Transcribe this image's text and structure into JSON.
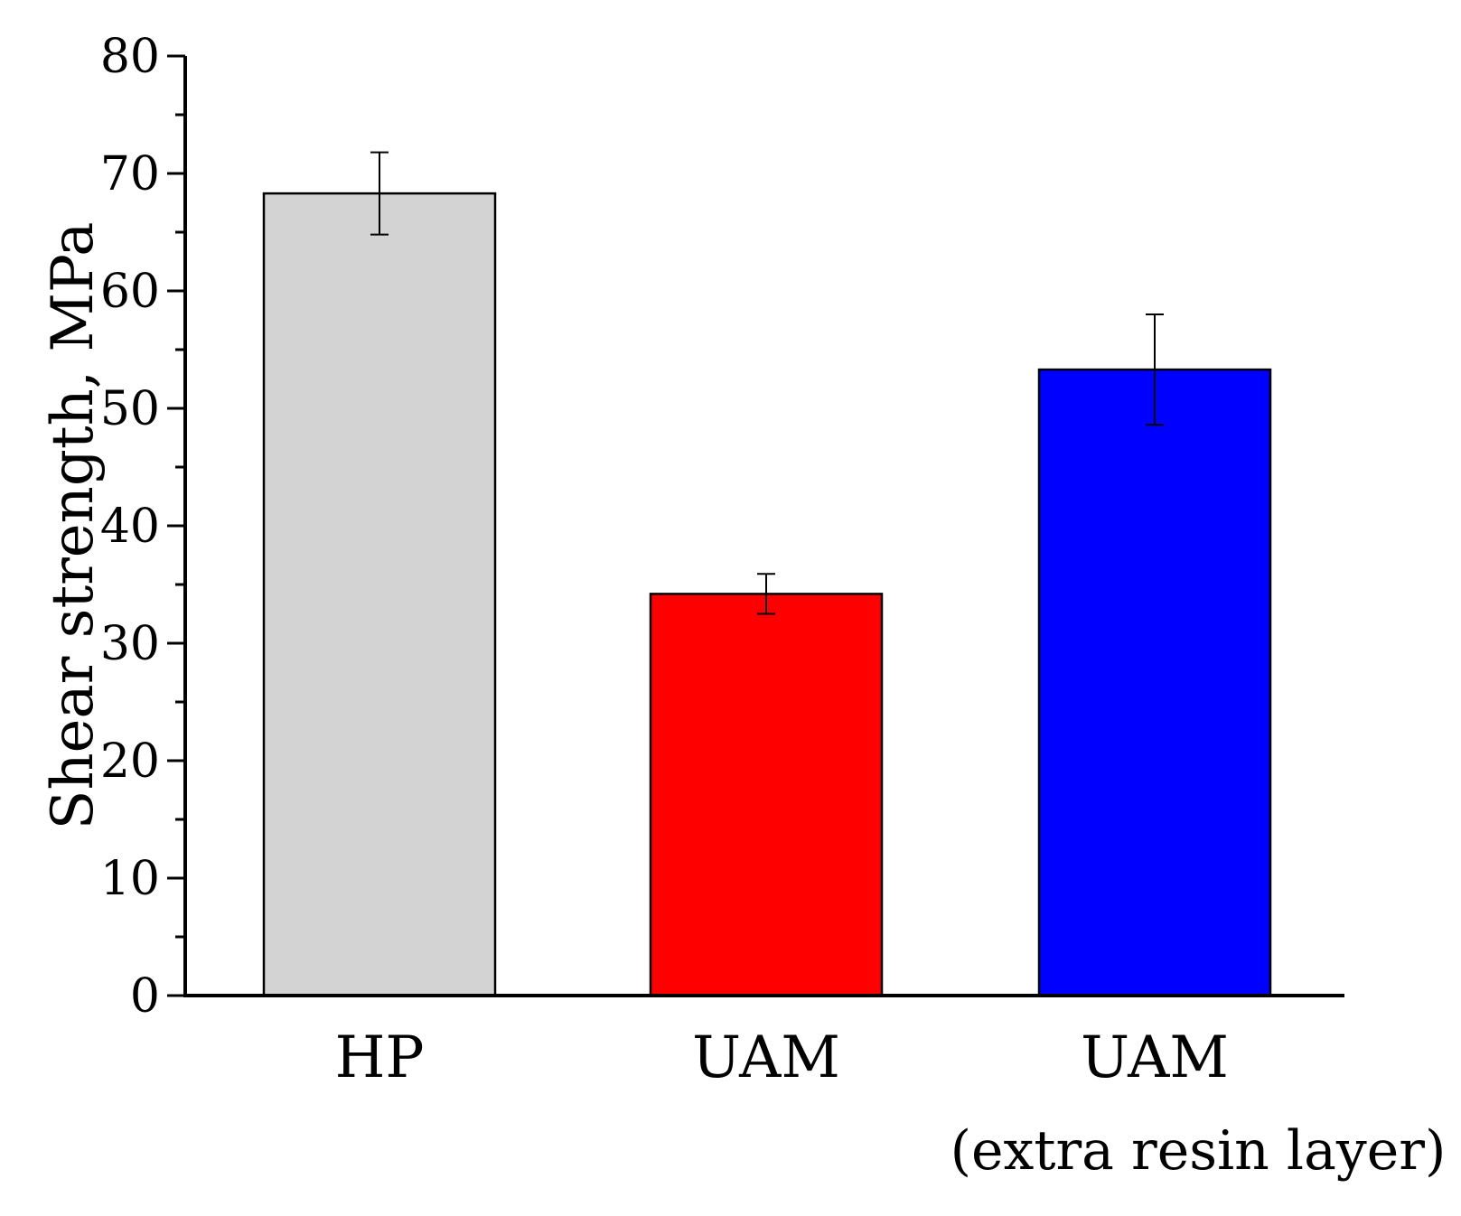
{
  "chart_data": {
    "type": "bar",
    "categories": [
      "HP",
      "UAM",
      "UAM"
    ],
    "category_sublabels": [
      "",
      "",
      "(extra resin layer)"
    ],
    "values": [
      68.3,
      34.2,
      53.3
    ],
    "errors": [
      3.5,
      1.7,
      4.7
    ],
    "colors": [
      "#d3d3d3",
      "#ff0000",
      "#0000ff"
    ],
    "title": "",
    "xlabel": "",
    "ylabel": "Shear strength, MPa",
    "ylim": [
      0,
      80
    ],
    "yticks": [
      0,
      10,
      20,
      30,
      40,
      50,
      60,
      70,
      80
    ],
    "grid": false,
    "legend": "none"
  }
}
